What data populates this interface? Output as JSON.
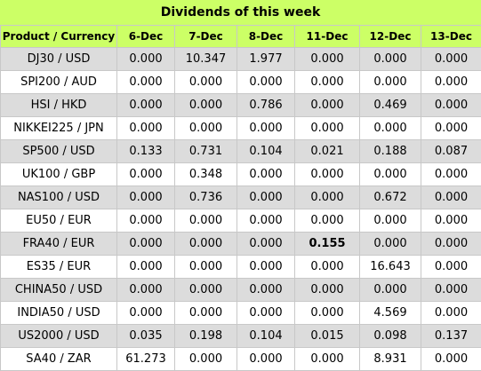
{
  "title": "Dividends of this week",
  "headers": [
    "Product / Currency",
    "6-Dec",
    "7-Dec",
    "8-Dec",
    "11-Dec",
    "12-Dec",
    "13-Dec"
  ],
  "rows": [
    {
      "product": "DJ30 / USD",
      "values": [
        "0.000",
        "10.347",
        "1.977",
        "0.000",
        "0.000",
        "0.000"
      ]
    },
    {
      "product": "SPI200 / AUD",
      "values": [
        "0.000",
        "0.000",
        "0.000",
        "0.000",
        "0.000",
        "0.000"
      ]
    },
    {
      "product": "HSI / HKD",
      "values": [
        "0.000",
        "0.000",
        "0.786",
        "0.000",
        "0.469",
        "0.000"
      ]
    },
    {
      "product": "NIKKEI225 / JPN",
      "values": [
        "0.000",
        "0.000",
        "0.000",
        "0.000",
        "0.000",
        "0.000"
      ]
    },
    {
      "product": "SP500 / USD",
      "values": [
        "0.133",
        "0.731",
        "0.104",
        "0.021",
        "0.188",
        "0.087"
      ]
    },
    {
      "product": "UK100 / GBP",
      "values": [
        "0.000",
        "0.348",
        "0.000",
        "0.000",
        "0.000",
        "0.000"
      ]
    },
    {
      "product": "NAS100 / USD",
      "values": [
        "0.000",
        "0.736",
        "0.000",
        "0.000",
        "0.672",
        "0.000"
      ]
    },
    {
      "product": "EU50 / EUR",
      "values": [
        "0.000",
        "0.000",
        "0.000",
        "0.000",
        "0.000",
        "0.000"
      ]
    },
    {
      "product": "FRA40 / EUR",
      "values": [
        "0.000",
        "0.000",
        "0.000",
        "0.155",
        "0.000",
        "0.000"
      ]
    },
    {
      "product": "ES35 / EUR",
      "values": [
        "0.000",
        "0.000",
        "0.000",
        "0.000",
        "16.643",
        "0.000"
      ]
    },
    {
      "product": "CHINA50 / USD",
      "values": [
        "0.000",
        "0.000",
        "0.000",
        "0.000",
        "0.000",
        "0.000"
      ]
    },
    {
      "product": "INDIA50 / USD",
      "values": [
        "0.000",
        "0.000",
        "0.000",
        "0.000",
        "4.569",
        "0.000"
      ]
    },
    {
      "product": "US2000 / USD",
      "values": [
        "0.035",
        "0.198",
        "0.104",
        "0.015",
        "0.098",
        "0.137"
      ]
    },
    {
      "product": "SA40 / ZAR",
      "values": [
        "61.273",
        "0.000",
        "0.000",
        "0.000",
        "8.931",
        "0.000"
      ]
    }
  ],
  "bold_cells": [
    [
      8,
      3
    ]
  ],
  "colors": {
    "header_bg": "#ccff66",
    "stripe_bg": "#dcdcdc",
    "grid": "#c8c8c8"
  }
}
